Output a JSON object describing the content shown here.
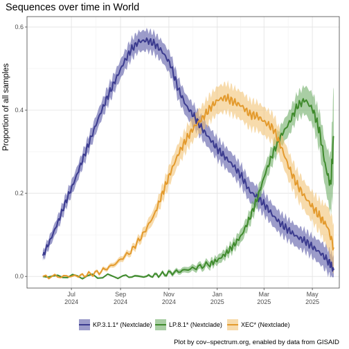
{
  "chart_data": {
    "type": "line",
    "title": "Sequences over time in World",
    "ylabel": "Proportion of all samples",
    "xlabel": "",
    "ylim": [
      -0.028,
      0.625
    ],
    "yticks": [
      0.0,
      0.2,
      0.4,
      0.6
    ],
    "ytick_labels": [
      "0.0",
      "0.2",
      "0.4",
      "0.6"
    ],
    "xlim": [
      "2024-05-06",
      "2025-06-04"
    ],
    "xticks": [
      {
        "date": "2024-07-01",
        "label1": "Jul",
        "label2": "2024"
      },
      {
        "date": "2024-09-01",
        "label1": "Sep",
        "label2": "2024"
      },
      {
        "date": "2024-11-01",
        "label1": "Nov",
        "label2": "2024"
      },
      {
        "date": "2025-01-01",
        "label1": "Jan",
        "label2": "2025"
      },
      {
        "date": "2025-03-01",
        "label1": "Mar",
        "label2": "2025"
      },
      {
        "date": "2025-05-01",
        "label1": "May",
        "label2": "2025"
      }
    ],
    "grid": true,
    "legend_position": "bottom",
    "series": [
      {
        "name": "KP.3.1.1* (Nextclade)",
        "color": "#3b3b8f",
        "fill": "#4b4b9f",
        "points": [
          [
            "2024-05-26",
            0.05
          ],
          [
            "2024-06-05",
            0.09
          ],
          [
            "2024-06-15",
            0.135
          ],
          [
            "2024-06-25",
            0.185
          ],
          [
            "2024-07-05",
            0.23
          ],
          [
            "2024-07-15",
            0.28
          ],
          [
            "2024-07-25",
            0.33
          ],
          [
            "2024-08-05",
            0.385
          ],
          [
            "2024-08-15",
            0.43
          ],
          [
            "2024-08-25",
            0.47
          ],
          [
            "2024-09-04",
            0.51
          ],
          [
            "2024-09-14",
            0.545
          ],
          [
            "2024-09-24",
            0.565
          ],
          [
            "2024-10-04",
            0.568
          ],
          [
            "2024-10-14",
            0.56
          ],
          [
            "2024-10-24",
            0.54
          ],
          [
            "2024-11-03",
            0.51
          ],
          [
            "2024-11-13",
            0.45
          ],
          [
            "2024-11-23",
            0.41
          ],
          [
            "2024-12-03",
            0.385
          ],
          [
            "2024-12-13",
            0.355
          ],
          [
            "2024-12-23",
            0.33
          ],
          [
            "2025-01-02",
            0.305
          ],
          [
            "2025-01-12",
            0.285
          ],
          [
            "2025-01-22",
            0.265
          ],
          [
            "2025-02-01",
            0.24
          ],
          [
            "2025-02-11",
            0.205
          ],
          [
            "2025-02-21",
            0.19
          ],
          [
            "2025-03-03",
            0.17
          ],
          [
            "2025-03-13",
            0.145
          ],
          [
            "2025-03-23",
            0.125
          ],
          [
            "2025-04-02",
            0.11
          ],
          [
            "2025-04-12",
            0.095
          ],
          [
            "2025-04-22",
            0.085
          ],
          [
            "2025-05-02",
            0.07
          ],
          [
            "2025-05-12",
            0.055
          ],
          [
            "2025-05-22",
            0.035
          ],
          [
            "2025-05-28",
            0.015
          ]
        ],
        "band_width": [
          0.012,
          0.014,
          0.016,
          0.017,
          0.018,
          0.019,
          0.02,
          0.021,
          0.022,
          0.022,
          0.023,
          0.024,
          0.024,
          0.025,
          0.025,
          0.025,
          0.026,
          0.026,
          0.026,
          0.026,
          0.026,
          0.026,
          0.026,
          0.026,
          0.026,
          0.026,
          0.026,
          0.026,
          0.026,
          0.026,
          0.026,
          0.026,
          0.026,
          0.026,
          0.026,
          0.028,
          0.03,
          0.032
        ]
      },
      {
        "name": "LP.8.1* (Nextclade)",
        "color": "#3f8a2c",
        "fill": "#62a55a",
        "points": [
          [
            "2024-05-26",
            0.0
          ],
          [
            "2024-07-15",
            0.0
          ],
          [
            "2024-09-04",
            0.0
          ],
          [
            "2024-10-04",
            0.0
          ],
          [
            "2024-10-24",
            0.005
          ],
          [
            "2024-11-13",
            0.012
          ],
          [
            "2024-12-03",
            0.02
          ],
          [
            "2024-12-23",
            0.03
          ],
          [
            "2025-01-02",
            0.04
          ],
          [
            "2025-01-12",
            0.055
          ],
          [
            "2025-01-22",
            0.075
          ],
          [
            "2025-02-01",
            0.1
          ],
          [
            "2025-02-11",
            0.14
          ],
          [
            "2025-02-21",
            0.19
          ],
          [
            "2025-03-03",
            0.25
          ],
          [
            "2025-03-13",
            0.3
          ],
          [
            "2025-03-23",
            0.34
          ],
          [
            "2025-04-02",
            0.37
          ],
          [
            "2025-04-12",
            0.41
          ],
          [
            "2025-04-22",
            0.425
          ],
          [
            "2025-05-02",
            0.4
          ],
          [
            "2025-05-10",
            0.35
          ],
          [
            "2025-05-18",
            0.26
          ],
          [
            "2025-05-24",
            0.22
          ],
          [
            "2025-05-28",
            0.335
          ]
        ],
        "band_width": [
          0.002,
          0.002,
          0.002,
          0.003,
          0.004,
          0.006,
          0.008,
          0.01,
          0.011,
          0.012,
          0.014,
          0.016,
          0.018,
          0.02,
          0.022,
          0.024,
          0.026,
          0.028,
          0.03,
          0.034,
          0.038,
          0.045,
          0.055,
          0.07,
          0.12
        ]
      },
      {
        "name": "XEC* (Nextclade)",
        "color": "#e39a2d",
        "fill": "#f0be68",
        "points": [
          [
            "2024-05-26",
            0.0
          ],
          [
            "2024-06-25",
            0.0
          ],
          [
            "2024-07-15",
            0.002
          ],
          [
            "2024-08-05",
            0.01
          ],
          [
            "2024-08-25",
            0.03
          ],
          [
            "2024-09-14",
            0.06
          ],
          [
            "2024-09-29",
            0.1
          ],
          [
            "2024-10-14",
            0.15
          ],
          [
            "2024-10-24",
            0.2
          ],
          [
            "2024-11-03",
            0.25
          ],
          [
            "2024-11-13",
            0.295
          ],
          [
            "2024-11-23",
            0.33
          ],
          [
            "2024-12-03",
            0.36
          ],
          [
            "2024-12-13",
            0.38
          ],
          [
            "2024-12-23",
            0.405
          ],
          [
            "2025-01-02",
            0.425
          ],
          [
            "2025-01-12",
            0.43
          ],
          [
            "2025-01-22",
            0.42
          ],
          [
            "2025-02-01",
            0.41
          ],
          [
            "2025-02-11",
            0.39
          ],
          [
            "2025-02-21",
            0.385
          ],
          [
            "2025-03-03",
            0.37
          ],
          [
            "2025-03-13",
            0.355
          ],
          [
            "2025-03-23",
            0.31
          ],
          [
            "2025-04-02",
            0.26
          ],
          [
            "2025-04-12",
            0.22
          ],
          [
            "2025-04-22",
            0.19
          ],
          [
            "2025-05-02",
            0.165
          ],
          [
            "2025-05-12",
            0.14
          ],
          [
            "2025-05-20",
            0.12
          ],
          [
            "2025-05-28",
            0.07
          ]
        ],
        "band_width": [
          0.002,
          0.002,
          0.003,
          0.004,
          0.006,
          0.008,
          0.012,
          0.016,
          0.02,
          0.024,
          0.026,
          0.028,
          0.03,
          0.031,
          0.032,
          0.033,
          0.034,
          0.034,
          0.034,
          0.034,
          0.034,
          0.034,
          0.034,
          0.034,
          0.034,
          0.034,
          0.035,
          0.036,
          0.04,
          0.05,
          0.06
        ]
      }
    ]
  },
  "footer": "Plot by cov–spectrum.org, enabled by data from GISAID"
}
